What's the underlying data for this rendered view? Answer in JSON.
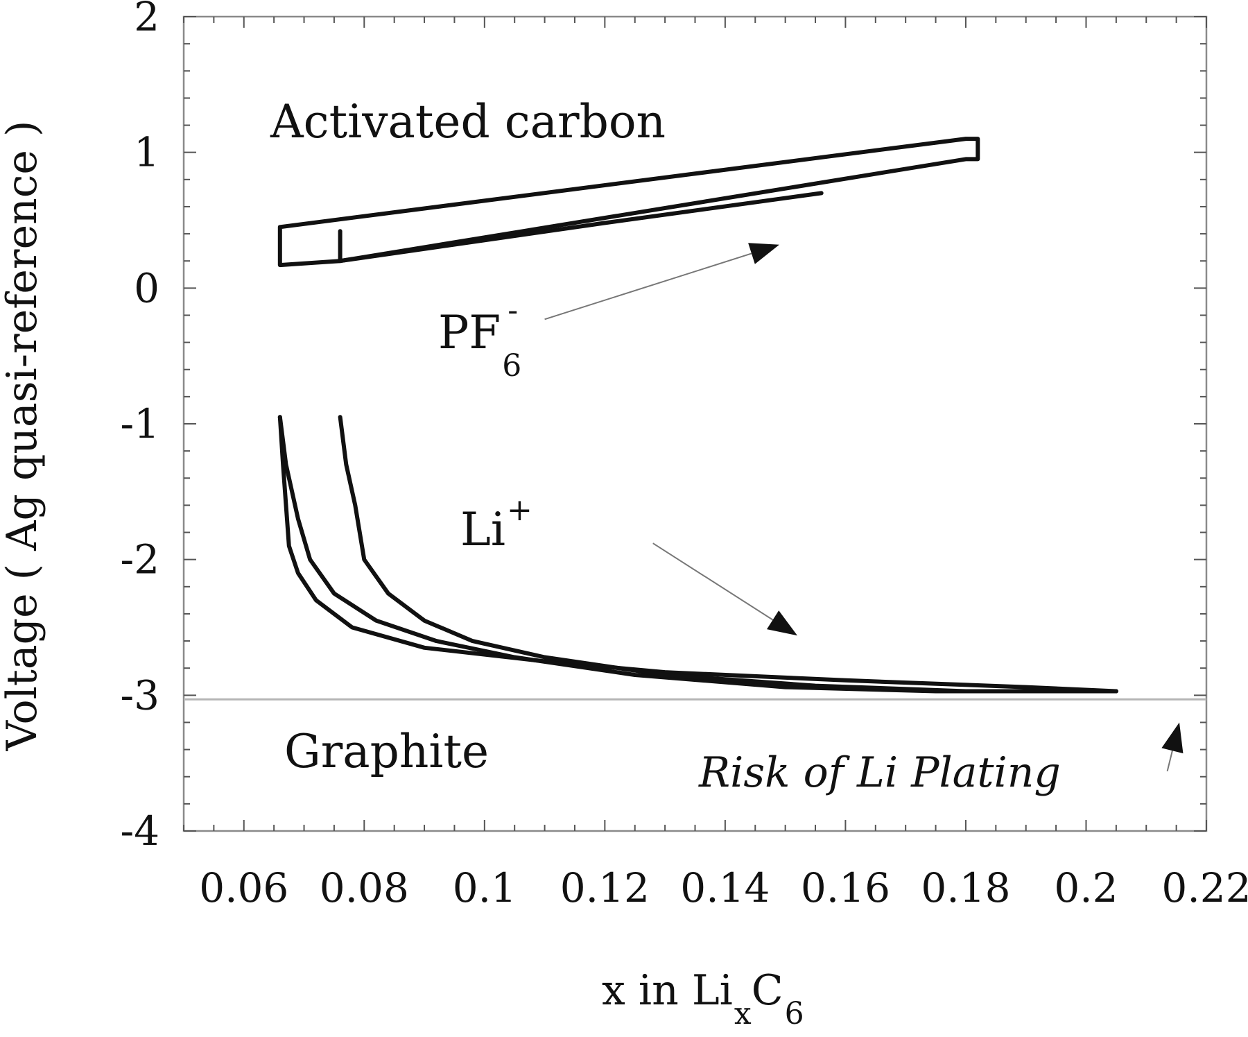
{
  "chart_data": {
    "type": "line",
    "title": "",
    "xlabel": {
      "prefix": "x in Li",
      "sub1": "x",
      "mid": "C",
      "sub2": "6"
    },
    "ylabel": "Voltage ( Ag quasi-reference )",
    "xlim": [
      0.05,
      0.22
    ],
    "ylim": [
      -4,
      2
    ],
    "xticks": [
      {
        "value": 0.06,
        "label": "0.06"
      },
      {
        "value": 0.08,
        "label": "0.08"
      },
      {
        "value": 0.1,
        "label": "0.1"
      },
      {
        "value": 0.12,
        "label": "0.12"
      },
      {
        "value": 0.14,
        "label": "0.14"
      },
      {
        "value": 0.16,
        "label": "0.16"
      },
      {
        "value": 0.18,
        "label": "0.18"
      },
      {
        "value": 0.2,
        "label": "0.2"
      },
      {
        "value": 0.22,
        "label": "0.22"
      }
    ],
    "yticks": [
      {
        "value": 2,
        "label": "2"
      },
      {
        "value": 1,
        "label": "1"
      },
      {
        "value": 0,
        "label": "0"
      },
      {
        "value": -1,
        "label": "-1"
      },
      {
        "value": -2,
        "label": "-2"
      },
      {
        "value": -3,
        "label": "-3"
      },
      {
        "value": -4,
        "label": "-4"
      }
    ],
    "grid": false,
    "series": [
      {
        "curves": [
          {
            "closed": true,
            "points": [
              [
                0.066,
                0.45
              ],
              [
                0.18,
                1.1
              ],
              [
                0.182,
                1.1
              ],
              [
                0.182,
                0.95
              ],
              [
                0.18,
                0.95
              ],
              [
                0.076,
                0.2
              ],
              [
                0.066,
                0.17
              ]
            ]
          },
          {
            "closed": false,
            "points": [
              [
                0.076,
                0.2
              ],
              [
                0.12,
                0.48
              ],
              [
                0.156,
                0.7
              ]
            ]
          },
          {
            "closed": false,
            "points": [
              [
                0.076,
                0.2
              ],
              [
                0.076,
                0.42
              ]
            ]
          }
        ]
      },
      {
        "curves": [
          {
            "closed": false,
            "points": [
              [
                0.066,
                -0.95
              ],
              [
                0.0665,
                -1.3
              ],
              [
                0.067,
                -1.6
              ],
              [
                0.0675,
                -1.9
              ],
              [
                0.069,
                -2.1
              ],
              [
                0.072,
                -2.3
              ],
              [
                0.078,
                -2.5
              ],
              [
                0.09,
                -2.65
              ],
              [
                0.11,
                -2.75
              ],
              [
                0.13,
                -2.83
              ],
              [
                0.16,
                -2.89
              ],
              [
                0.19,
                -2.94
              ],
              [
                0.205,
                -2.97
              ]
            ]
          },
          {
            "closed": false,
            "points": [
              [
                0.066,
                -0.95
              ],
              [
                0.067,
                -1.3
              ],
              [
                0.069,
                -1.7
              ],
              [
                0.071,
                -2.0
              ],
              [
                0.075,
                -2.25
              ],
              [
                0.082,
                -2.45
              ],
              [
                0.092,
                -2.6
              ],
              [
                0.105,
                -2.72
              ],
              [
                0.125,
                -2.85
              ],
              [
                0.15,
                -2.94
              ],
              [
                0.175,
                -2.97
              ],
              [
                0.195,
                -2.97
              ],
              [
                0.205,
                -2.97
              ]
            ]
          },
          {
            "closed": false,
            "points": [
              [
                0.076,
                -0.95
              ],
              [
                0.077,
                -1.3
              ],
              [
                0.0785,
                -1.6
              ],
              [
                0.08,
                -2.0
              ],
              [
                0.084,
                -2.25
              ],
              [
                0.09,
                -2.45
              ],
              [
                0.098,
                -2.6
              ],
              [
                0.11,
                -2.72
              ],
              [
                0.13,
                -2.85
              ],
              [
                0.155,
                -2.93
              ],
              [
                0.18,
                -2.97
              ],
              [
                0.205,
                -2.97
              ]
            ]
          }
        ]
      }
    ],
    "reference_line": {
      "y": -3.03
    },
    "annotations": {
      "activated_carbon": "Activated carbon",
      "graphite": "Graphite",
      "pf6": {
        "main": "PF",
        "sub": "6",
        "sup": "-"
      },
      "li": {
        "main": "Li",
        "sup": "+"
      },
      "risk": "Risk of Li Plating"
    },
    "arrows": [
      {
        "from": [
          0.11,
          -0.23
        ],
        "to": [
          0.149,
          0.32
        ]
      },
      {
        "from": [
          0.128,
          -1.88
        ],
        "to": [
          0.152,
          -2.56
        ]
      },
      {
        "from": [
          0.2135,
          -3.56
        ],
        "to": [
          0.2155,
          -3.2
        ]
      }
    ]
  }
}
